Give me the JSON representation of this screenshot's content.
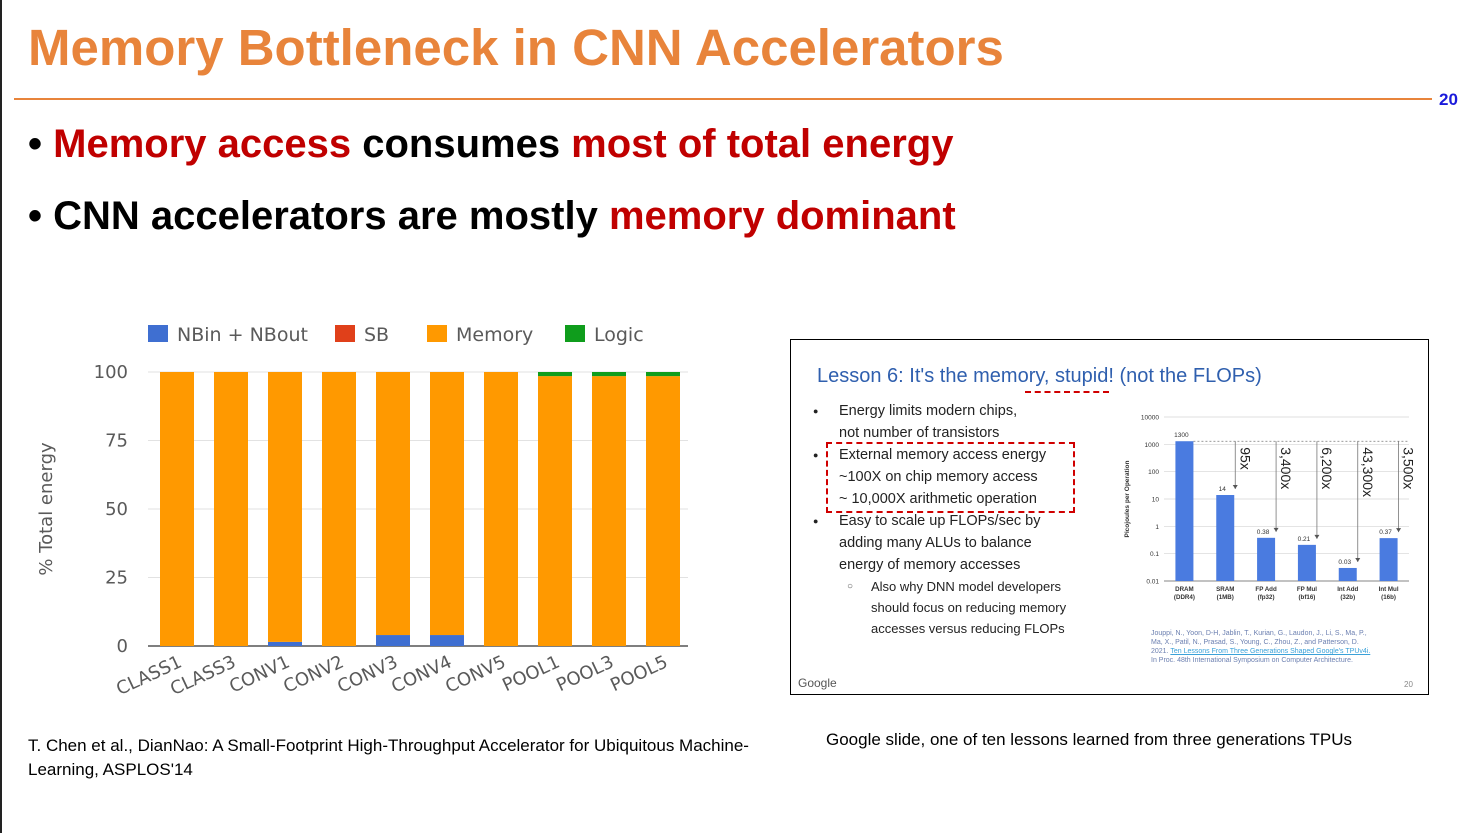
{
  "slide": {
    "title": "Memory Bottleneck in CNN Accelerators",
    "page_number": "20",
    "bullets": [
      {
        "prefix": "• ",
        "parts": [
          {
            "text": "Memory access",
            "color": "#c00000"
          },
          {
            "text": " consumes ",
            "color": "#000000"
          },
          {
            "text": "most of total energy",
            "color": "#c00000"
          }
        ]
      },
      {
        "prefix": "• ",
        "parts": [
          {
            "text": "CNN accelerators are mostly ",
            "color": "#000000"
          },
          {
            "text": "memory dominant",
            "color": "#c00000"
          }
        ]
      }
    ],
    "caption_left": "T. Chen et al., DianNao: A Small-Footprint High-Throughput Accelerator for Ubiquitous Machine-Learning, ASPLOS'14",
    "caption_right": "Google slide, one of ten lessons learned from three generations TPUs",
    "accent_color": "#e8843b"
  },
  "inset": {
    "title": "Lesson 6: It's the memory, stupid! (not the FLOPs)",
    "bullets": [
      {
        "lines": [
          "Energy limits modern chips,",
          "not number of transistors"
        ]
      },
      {
        "lines": [
          "External memory access energy",
          "~100X on chip memory access",
          "~ 10,000X arithmetic operation"
        ]
      },
      {
        "lines": [
          "Easy to scale up FLOPs/sec by",
          "adding many ALUs to balance",
          "energy of memory accesses"
        ]
      }
    ],
    "sub_bullet": {
      "lines": [
        "Also why DNN model developers",
        "should focus on reducing memory",
        "accesses versus reducing FLOPs"
      ]
    },
    "footer_brand": "Google",
    "footer_page": "20",
    "reference": {
      "line1": "Jouppi, N., Yoon, D-H, Jablin, T., Kurian, G., Laudon, J., Li, S., Ma, P.,",
      "line2": "Ma, X., Patil, N., Prasad, S., Young, C., Zhou, Z., and Patterson, D.",
      "line3_year": "2021.",
      "line3_link": "Ten Lessons From Three Generations Shaped Google's TPUv4i.",
      "line4": "In Proc. 48th International Symposium on Computer Architecture."
    }
  },
  "chart_data": [
    {
      "type": "bar",
      "stacked": true,
      "categories": [
        "CLASS1",
        "CLASS3",
        "CONV1",
        "CONV2",
        "CONV3",
        "CONV4",
        "CONV5",
        "POOL1",
        "POOL3",
        "POOL5"
      ],
      "series": [
        {
          "name": "NBin + NBout",
          "color": "#3f6fd1",
          "values": [
            0,
            0,
            1.5,
            0,
            4,
            4,
            0,
            0,
            0,
            0
          ]
        },
        {
          "name": "SB",
          "color": "#e0401a",
          "values": [
            0,
            0,
            0,
            0,
            0,
            0,
            0,
            0,
            0,
            0
          ]
        },
        {
          "name": "Memory",
          "color": "#ff9900",
          "values": [
            100,
            100,
            98.5,
            100,
            96,
            96,
            100,
            98.5,
            98.5,
            98.5
          ]
        },
        {
          "name": "Logic",
          "color": "#0f9d1c",
          "values": [
            0,
            0,
            0,
            0,
            0,
            0,
            0,
            1.5,
            1.5,
            1.5
          ]
        }
      ],
      "ylabel": "% Total energy",
      "xlabel": "",
      "title": "",
      "ylim": [
        0,
        100
      ],
      "yticks": [
        0,
        25,
        50,
        75,
        100
      ],
      "legend": "top",
      "grid": true
    },
    {
      "type": "bar",
      "log_scale": true,
      "categories": [
        "DRAM (DDR4)",
        "SRAM (1MB)",
        "FP Add (fp32)",
        "FP Mul (bf16)",
        "Int Add (32b)",
        "Int Mul (16b)"
      ],
      "category_lines": [
        [
          "DRAM",
          "(DDR4)"
        ],
        [
          "SRAM",
          "(1MB)"
        ],
        [
          "FP Add",
          "(fp32)"
        ],
        [
          "FP Mul",
          "(bf16)"
        ],
        [
          "Int Add",
          "(32b)"
        ],
        [
          "Int Mul",
          "(16b)"
        ]
      ],
      "values": [
        1300,
        14,
        0.38,
        0.21,
        0.03,
        0.37
      ],
      "value_labels": [
        "1300",
        "14",
        "0.38",
        "0.21",
        "0.03",
        "0.37"
      ],
      "ratios": [
        "95x",
        "3,400x",
        "6,200x",
        "43,300x",
        "3,500x"
      ],
      "ylabel": "Picojoules per Operation",
      "ylim": [
        0.01,
        10000
      ],
      "yticks": [
        0.01,
        0.1,
        1,
        10,
        100,
        1000,
        10000
      ],
      "ytick_labels": [
        "0.01",
        "0.1",
        "1",
        "10",
        "100",
        "1000",
        "10000"
      ],
      "bar_color": "#4a7be0"
    }
  ]
}
